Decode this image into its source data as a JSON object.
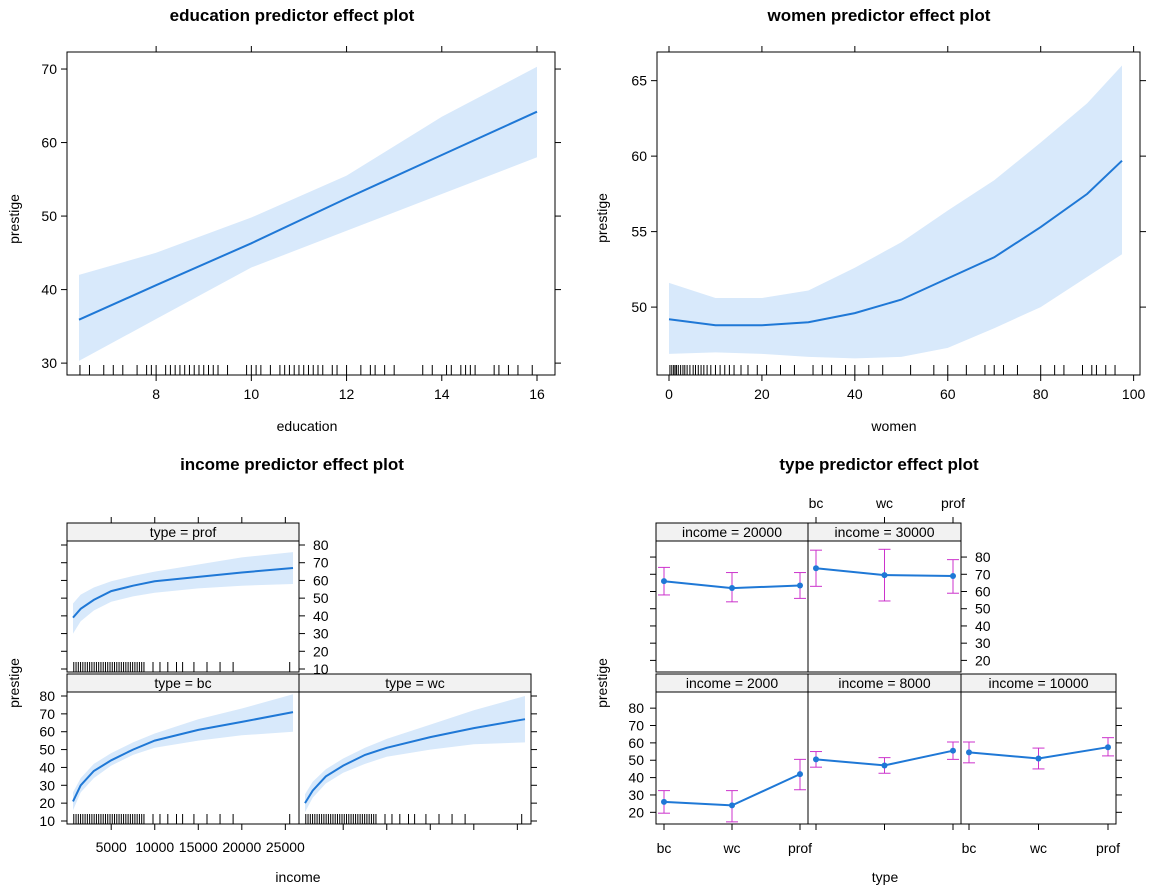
{
  "colors": {
    "line": "#1f78d6",
    "band": "#d8e9fb",
    "errorbar": "#cc33cc",
    "strip_bg": "#f2f2f2",
    "frame": "#000000"
  },
  "chart_data": [
    {
      "id": "education",
      "type": "line",
      "title": "education predictor effect plot",
      "xlabel": "education",
      "ylabel": "prestige",
      "xlim": [
        6.38,
        16.0
      ],
      "ylim": [
        29.2,
        71.5
      ],
      "xticks": [
        8,
        10,
        12,
        14,
        16
      ],
      "yticks": [
        30,
        40,
        50,
        60,
        70
      ],
      "x": [
        6.38,
        8,
        10,
        12,
        14,
        16
      ],
      "y": [
        35.9,
        40.6,
        46.3,
        52.4,
        58.3,
        64.2
      ],
      "lower": [
        30.3,
        36.0,
        43.0,
        48.0,
        53.0,
        58.0
      ],
      "upper": [
        42.0,
        45.0,
        49.8,
        55.5,
        63.5,
        70.3
      ],
      "rug": [
        6.4,
        6.6,
        6.9,
        7.1,
        7.3,
        7.6,
        7.8,
        7.9,
        8.0,
        8.2,
        8.3,
        8.4,
        8.5,
        8.6,
        8.7,
        8.8,
        8.9,
        9.0,
        9.1,
        9.2,
        9.3,
        9.5,
        9.9,
        10.0,
        10.1,
        10.2,
        10.4,
        10.6,
        10.7,
        10.8,
        10.9,
        11.0,
        11.1,
        11.2,
        11.3,
        11.4,
        11.5,
        11.7,
        11.8,
        12.0,
        12.3,
        12.5,
        12.6,
        12.8,
        13.0,
        13.6,
        13.8,
        14.1,
        14.2,
        14.4,
        14.5,
        14.6,
        14.7,
        15.1,
        15.2,
        15.4,
        15.6,
        15.9
      ]
    },
    {
      "id": "women",
      "type": "line",
      "title": "women predictor effect plot",
      "xlabel": "women",
      "ylabel": "prestige",
      "xlim": [
        0,
        97.5
      ],
      "ylim": [
        45.9,
        66.5
      ],
      "xticks": [
        0,
        20,
        40,
        60,
        80,
        100
      ],
      "yticks": [
        50,
        55,
        60,
        65
      ],
      "x": [
        0,
        10,
        20,
        30,
        40,
        50,
        60,
        70,
        80,
        90,
        97.5
      ],
      "y": [
        49.2,
        48.8,
        48.8,
        49.0,
        49.6,
        50.5,
        51.9,
        53.3,
        55.3,
        57.5,
        59.7
      ],
      "lower": [
        46.9,
        47.0,
        46.9,
        46.7,
        46.6,
        46.7,
        47.3,
        48.6,
        50.0,
        52.0,
        53.5
      ],
      "upper": [
        51.6,
        50.6,
        50.6,
        51.1,
        52.6,
        54.3,
        56.4,
        58.4,
        60.9,
        63.5,
        66.0
      ],
      "rug": [
        0.2,
        0.6,
        1,
        1.3,
        1.6,
        2,
        2.5,
        3,
        3.4,
        3.9,
        4.5,
        5.2,
        5.7,
        6.3,
        6.9,
        7.5,
        8.2,
        9,
        10,
        11,
        12,
        13,
        14,
        15.5,
        17,
        19,
        21,
        24,
        27,
        31,
        33,
        35,
        38,
        40,
        43,
        46,
        52,
        57,
        60,
        64,
        68,
        70,
        72,
        75,
        80,
        83,
        85,
        89,
        91,
        92,
        94,
        96
      ]
    },
    {
      "id": "income",
      "type": "line",
      "title": "income predictor effect plot",
      "xlabel": "income",
      "ylabel": "prestige",
      "xlim": [
        611,
        25879
      ],
      "ylim": [
        10,
        80
      ],
      "xticks": [
        5000,
        10000,
        15000,
        20000,
        25000
      ],
      "yticks": [
        10,
        20,
        30,
        40,
        50,
        60,
        70,
        80
      ],
      "panels": [
        {
          "strip": "type = prof",
          "x": [
            611,
            1500,
            3000,
            5000,
            7500,
            10000,
            15000,
            20000,
            25879
          ],
          "y": [
            39,
            44,
            49,
            54,
            57,
            59.5,
            62,
            64.5,
            67
          ],
          "lower": [
            30,
            37,
            43,
            48,
            51,
            53,
            55.5,
            57,
            58
          ],
          "upper": [
            47,
            52,
            56,
            59.5,
            62.5,
            65,
            69,
            73,
            76
          ]
        },
        {
          "strip": "type = bc",
          "x": [
            611,
            1500,
            3000,
            5000,
            7500,
            10000,
            15000,
            20000,
            25879
          ],
          "y": [
            21,
            30,
            38,
            44,
            50,
            55,
            61,
            65.5,
            71
          ],
          "lower": [
            16,
            26,
            34,
            41,
            47,
            51,
            55,
            58,
            60
          ],
          "upper": [
            26,
            34,
            42,
            48,
            54,
            59,
            67,
            73,
            81
          ]
        },
        {
          "strip": "type = wc",
          "x": [
            611,
            1500,
            3000,
            5000,
            7500,
            10000,
            15000,
            20000,
            25879
          ],
          "y": [
            20,
            27,
            35,
            41,
            47,
            51,
            57,
            62,
            67
          ],
          "lower": [
            15,
            23,
            31,
            37,
            42,
            46,
            50,
            53,
            54
          ],
          "upper": [
            25,
            32,
            39,
            45,
            51,
            56,
            64,
            72,
            80
          ]
        }
      ]
    },
    {
      "id": "type",
      "type": "line",
      "title": "type predictor effect plot",
      "xlabel": "type",
      "ylabel": "prestige",
      "categories": [
        "bc",
        "wc",
        "prof"
      ],
      "ylim": [
        15,
        87
      ],
      "yticks": [
        20,
        30,
        40,
        50,
        60,
        70,
        80
      ],
      "panels": [
        {
          "strip": "income = 20000",
          "y": [
            66,
            62,
            63.5
          ],
          "lower": [
            58,
            54,
            56
          ],
          "upper": [
            74,
            71,
            71
          ]
        },
        {
          "strip": "income = 30000",
          "y": [
            73.5,
            69.5,
            69
          ],
          "lower": [
            63,
            54.5,
            59
          ],
          "upper": [
            84,
            84.5,
            78.5
          ]
        },
        {
          "strip": "income = 2000",
          "y": [
            26,
            24,
            42
          ],
          "lower": [
            19.5,
            14.5,
            33
          ],
          "upper": [
            32.5,
            32.5,
            50.5
          ]
        },
        {
          "strip": "income = 8000",
          "y": [
            50.5,
            47,
            55.5
          ],
          "lower": [
            46,
            42.5,
            50.5
          ],
          "upper": [
            55,
            51.5,
            60.5
          ]
        },
        {
          "strip": "income = 10000",
          "y": [
            54.5,
            51,
            57.5
          ],
          "lower": [
            48.5,
            45,
            52.5
          ],
          "upper": [
            60.5,
            57,
            63
          ]
        }
      ]
    }
  ]
}
